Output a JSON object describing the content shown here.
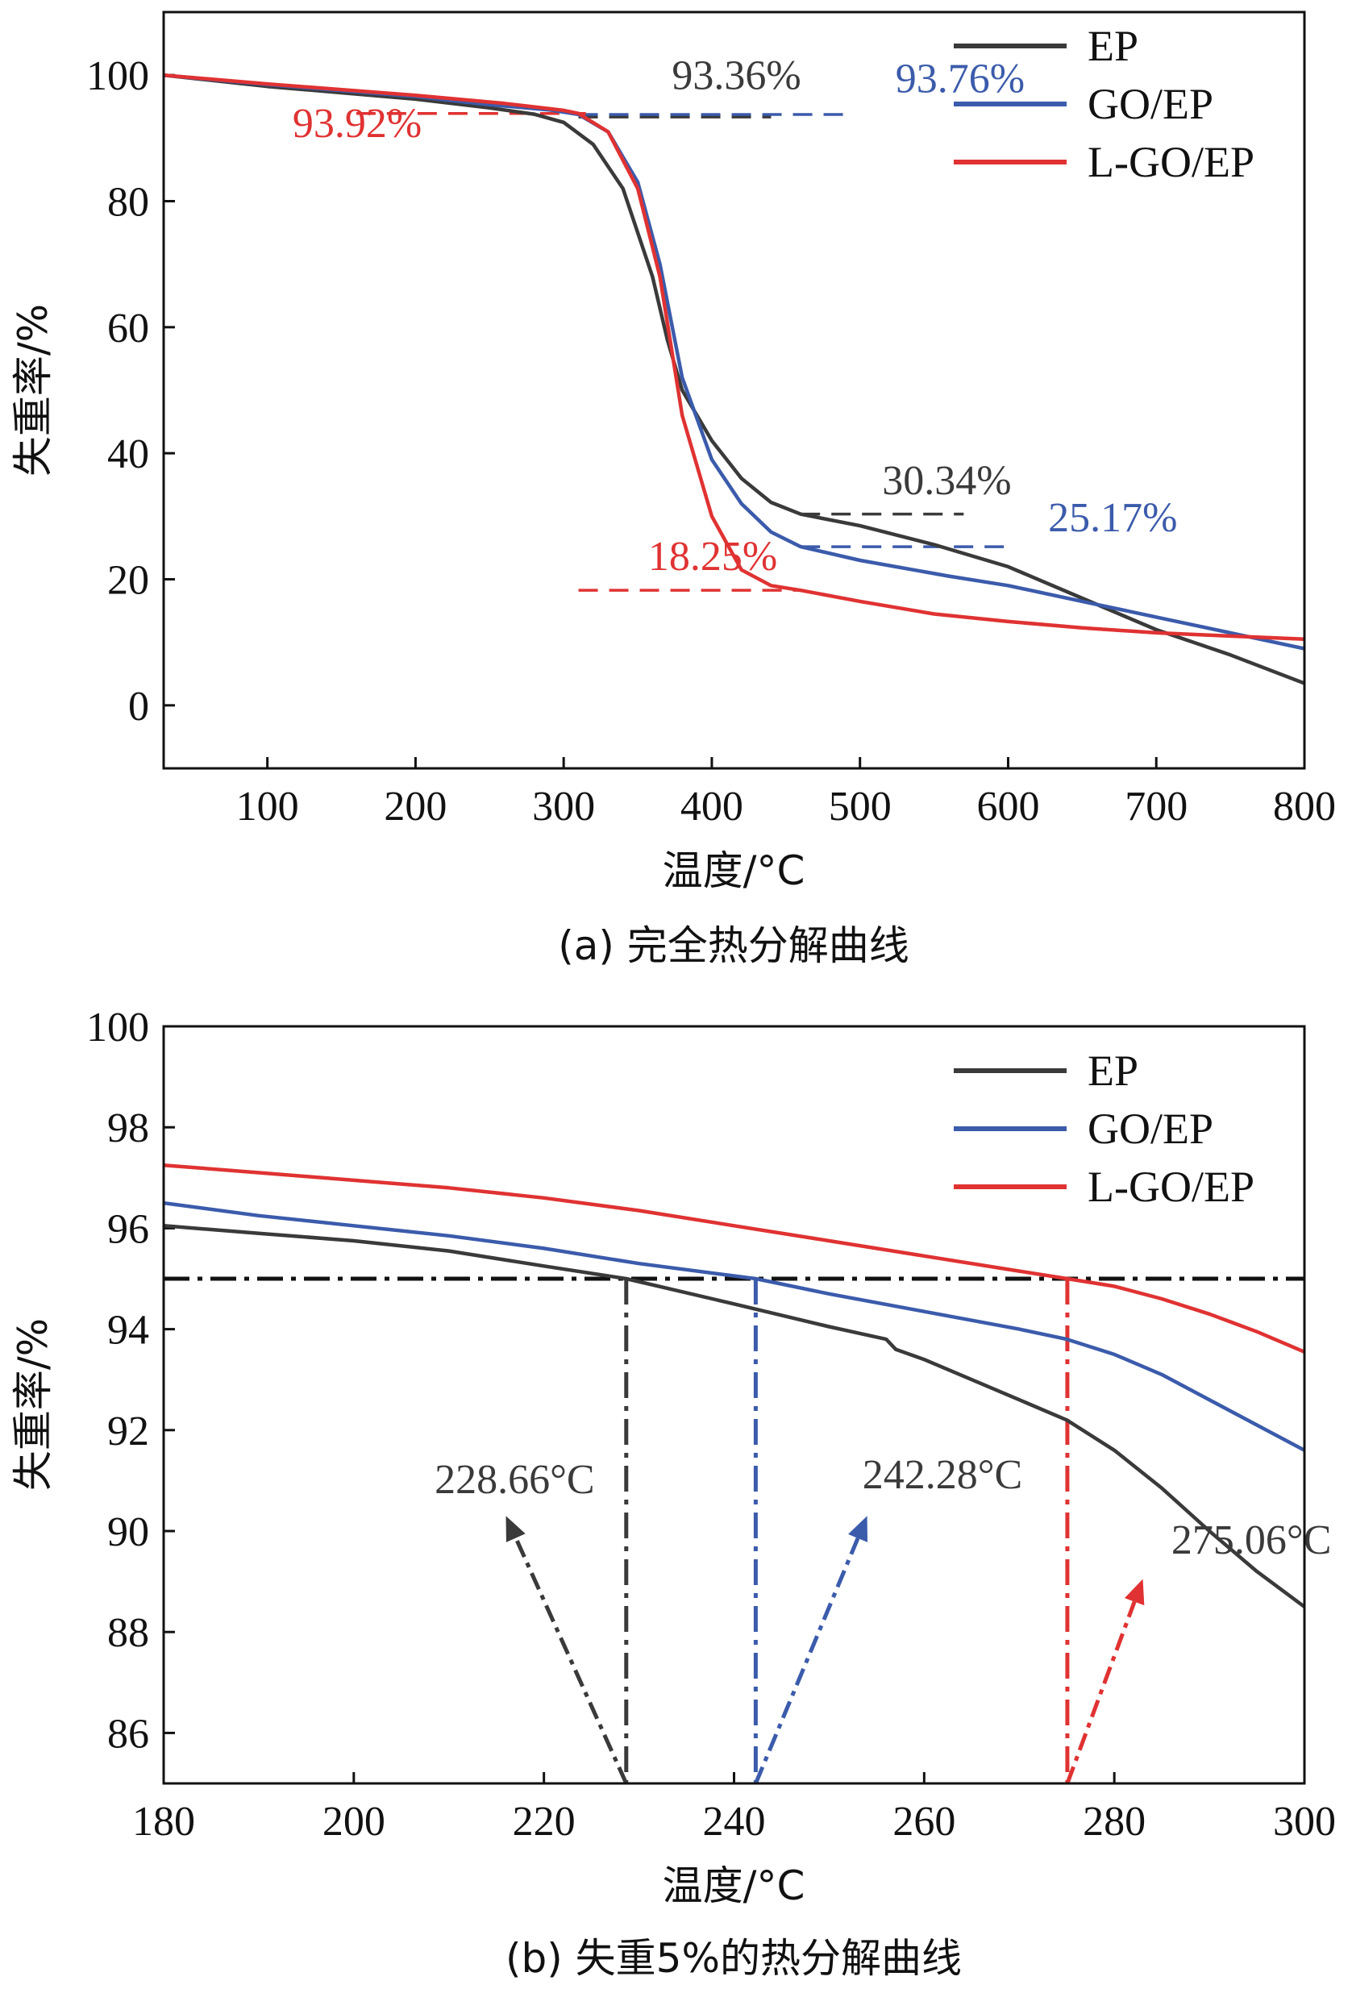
{
  "colors": {
    "EP": "#3a3a3a",
    "GO/EP": "#3b5bab",
    "L-GO/EP": "#e03232",
    "axis": "#111111"
  },
  "chart_data": [
    {
      "id": "a",
      "type": "line",
      "caption": "(a) 完全热分解曲线",
      "xlabel": "温度/°C",
      "ylabel": "失重率/%",
      "xlim": [
        30,
        800
      ],
      "ylim": [
        -10,
        110
      ],
      "xticks": [
        100,
        200,
        300,
        400,
        500,
        600,
        700,
        800
      ],
      "yticks": [
        0,
        20,
        40,
        60,
        80,
        100
      ],
      "legend": [
        "EP",
        "GO/EP",
        "L-GO/EP"
      ],
      "series": [
        {
          "name": "EP",
          "color_key": "EP",
          "points": [
            [
              30,
              100
            ],
            [
              100,
              98.2
            ],
            [
              200,
              96.2
            ],
            [
              250,
              94.8
            ],
            [
              280,
              93.8
            ],
            [
              300,
              92.5
            ],
            [
              320,
              89
            ],
            [
              340,
              82
            ],
            [
              360,
              68
            ],
            [
              370,
              58
            ],
            [
              380,
              50
            ],
            [
              400,
              42
            ],
            [
              420,
              36
            ],
            [
              440,
              32.2
            ],
            [
              460,
              30.34
            ],
            [
              500,
              28.5
            ],
            [
              550,
              25.5
            ],
            [
              600,
              22
            ],
            [
              650,
              17
            ],
            [
              700,
              12
            ],
            [
              750,
              8
            ],
            [
              800,
              3.5
            ]
          ]
        },
        {
          "name": "GO/EP",
          "color_key": "GO/EP",
          "points": [
            [
              30,
              100
            ],
            [
              100,
              98.5
            ],
            [
              200,
              96.6
            ],
            [
              250,
              95.3
            ],
            [
              290,
              94.5
            ],
            [
              310,
              93.76
            ],
            [
              330,
              91
            ],
            [
              350,
              83
            ],
            [
              365,
              70
            ],
            [
              380,
              52
            ],
            [
              400,
              39
            ],
            [
              420,
              32
            ],
            [
              440,
              27.5
            ],
            [
              460,
              25.17
            ],
            [
              500,
              23
            ],
            [
              560,
              20.5
            ],
            [
              600,
              19
            ],
            [
              650,
              16.5
            ],
            [
              700,
              14
            ],
            [
              750,
              11.5
            ],
            [
              800,
              9
            ]
          ]
        },
        {
          "name": "L-GO/EP",
          "color_key": "L-GO/EP",
          "points": [
            [
              30,
              100
            ],
            [
              100,
              98.6
            ],
            [
              200,
              96.8
            ],
            [
              260,
              95.5
            ],
            [
              300,
              94.4
            ],
            [
              310,
              93.92
            ],
            [
              330,
              91
            ],
            [
              350,
              82
            ],
            [
              365,
              68
            ],
            [
              380,
              46
            ],
            [
              400,
              30
            ],
            [
              420,
              21.5
            ],
            [
              440,
              19
            ],
            [
              460,
              18.25
            ],
            [
              500,
              16.5
            ],
            [
              550,
              14.5
            ],
            [
              600,
              13.3
            ],
            [
              650,
              12.3
            ],
            [
              700,
              11.5
            ],
            [
              750,
              11
            ],
            [
              800,
              10.5
            ]
          ]
        }
      ],
      "reference_lines": [
        {
          "color_key": "EP",
          "x": [
            310,
            440
          ],
          "y": 93.36
        },
        {
          "color_key": "GO/EP",
          "x": [
            310,
            490
          ],
          "y": 93.76
        },
        {
          "color_key": "L-GO/EP",
          "x": [
            160,
            315
          ],
          "y": 93.92
        },
        {
          "color_key": "EP",
          "x": [
            460,
            570
          ],
          "y": 30.34
        },
        {
          "color_key": "GO/EP",
          "x": [
            460,
            600
          ],
          "y": 25.17
        },
        {
          "color_key": "L-GO/EP",
          "x": [
            310,
            460
          ],
          "y": 18.25
        }
      ],
      "annotations": [
        {
          "text": "93.36%",
          "color_key": "EP",
          "x": 373,
          "y": 97.8
        },
        {
          "text": "93.76%",
          "color_key": "GO/EP",
          "x": 524,
          "y": 97.3
        },
        {
          "text": "93.92%",
          "color_key": "L-GO/EP",
          "x": 117,
          "y": 90.2
        },
        {
          "text": "30.34%",
          "color_key": "EP",
          "x": 515,
          "y": 33.5
        },
        {
          "text": "25.17%",
          "color_key": "GO/EP",
          "x": 627,
          "y": 27.6
        },
        {
          "text": "18.25%",
          "color_key": "L-GO/EP",
          "x": 357,
          "y": 21.5
        }
      ]
    },
    {
      "id": "b",
      "type": "line",
      "caption": "(b) 失重5%的热分解曲线",
      "xlabel": "温度/°C",
      "ylabel": "失重率/%",
      "xlim": [
        180,
        300
      ],
      "ylim": [
        85,
        100
      ],
      "xticks": [
        180,
        200,
        220,
        240,
        260,
        280,
        300
      ],
      "yticks": [
        86,
        88,
        90,
        92,
        94,
        96,
        98,
        100
      ],
      "legend": [
        "EP",
        "GO/EP",
        "L-GO/EP"
      ],
      "series": [
        {
          "name": "EP",
          "color_key": "EP",
          "points": [
            [
              180,
              96.05
            ],
            [
              190,
              95.9
            ],
            [
              200,
              95.75
            ],
            [
              210,
              95.55
            ],
            [
              220,
              95.25
            ],
            [
              228.66,
              95
            ],
            [
              240,
              94.5
            ],
            [
              250,
              94.05
            ],
            [
              256,
              93.8
            ],
            [
              257,
              93.6
            ],
            [
              260,
              93.4
            ],
            [
              270,
              92.6
            ],
            [
              275,
              92.2
            ],
            [
              280,
              91.6
            ],
            [
              285,
              90.85
            ],
            [
              290,
              90
            ],
            [
              295,
              89.2
            ],
            [
              300,
              88.5
            ]
          ]
        },
        {
          "name": "GO/EP",
          "color_key": "GO/EP",
          "points": [
            [
              180,
              96.5
            ],
            [
              190,
              96.25
            ],
            [
              200,
              96.05
            ],
            [
              210,
              95.85
            ],
            [
              220,
              95.6
            ],
            [
              230,
              95.3
            ],
            [
              242.28,
              95
            ],
            [
              250,
              94.7
            ],
            [
              260,
              94.35
            ],
            [
              270,
              94
            ],
            [
              275,
              93.8
            ],
            [
              280,
              93.5
            ],
            [
              285,
              93.1
            ],
            [
              290,
              92.6
            ],
            [
              295,
              92.1
            ],
            [
              300,
              91.6
            ]
          ]
        },
        {
          "name": "L-GO/EP",
          "color_key": "L-GO/EP",
          "points": [
            [
              180,
              97.25
            ],
            [
              190,
              97.1
            ],
            [
              200,
              96.95
            ],
            [
              210,
              96.8
            ],
            [
              220,
              96.6
            ],
            [
              230,
              96.35
            ],
            [
              240,
              96.05
            ],
            [
              250,
              95.75
            ],
            [
              260,
              95.45
            ],
            [
              270,
              95.15
            ],
            [
              275.06,
              95
            ],
            [
              280,
              94.85
            ],
            [
              285,
              94.6
            ],
            [
              290,
              94.3
            ],
            [
              295,
              93.95
            ],
            [
              300,
              93.55
            ]
          ]
        }
      ],
      "threshold": {
        "y": 95,
        "color_key": "axis"
      },
      "drop_lines": [
        {
          "color_key": "EP",
          "x": 228.66
        },
        {
          "color_key": "GO/EP",
          "x": 242.28
        },
        {
          "color_key": "L-GO/EP",
          "x": 275.06
        }
      ],
      "arrows": [
        {
          "color_key": "EP",
          "from": [
            228.66,
            85
          ],
          "to": [
            216,
            90.3
          ]
        },
        {
          "color_key": "GO/EP",
          "from": [
            242.28,
            85
          ],
          "to": [
            254,
            90.3
          ]
        },
        {
          "color_key": "L-GO/EP",
          "from": [
            275.06,
            85
          ],
          "to": [
            283,
            89.05
          ]
        }
      ],
      "annotations": [
        {
          "text": "228.66°C",
          "color_key": "EP",
          "x": 208.5,
          "y": 90.75
        },
        {
          "text": "242.28°C",
          "color_key": "EP",
          "x": 253.5,
          "y": 90.85
        },
        {
          "text": "275.06°C",
          "color_key": "EP",
          "x": 286,
          "y": 89.55
        }
      ]
    }
  ]
}
